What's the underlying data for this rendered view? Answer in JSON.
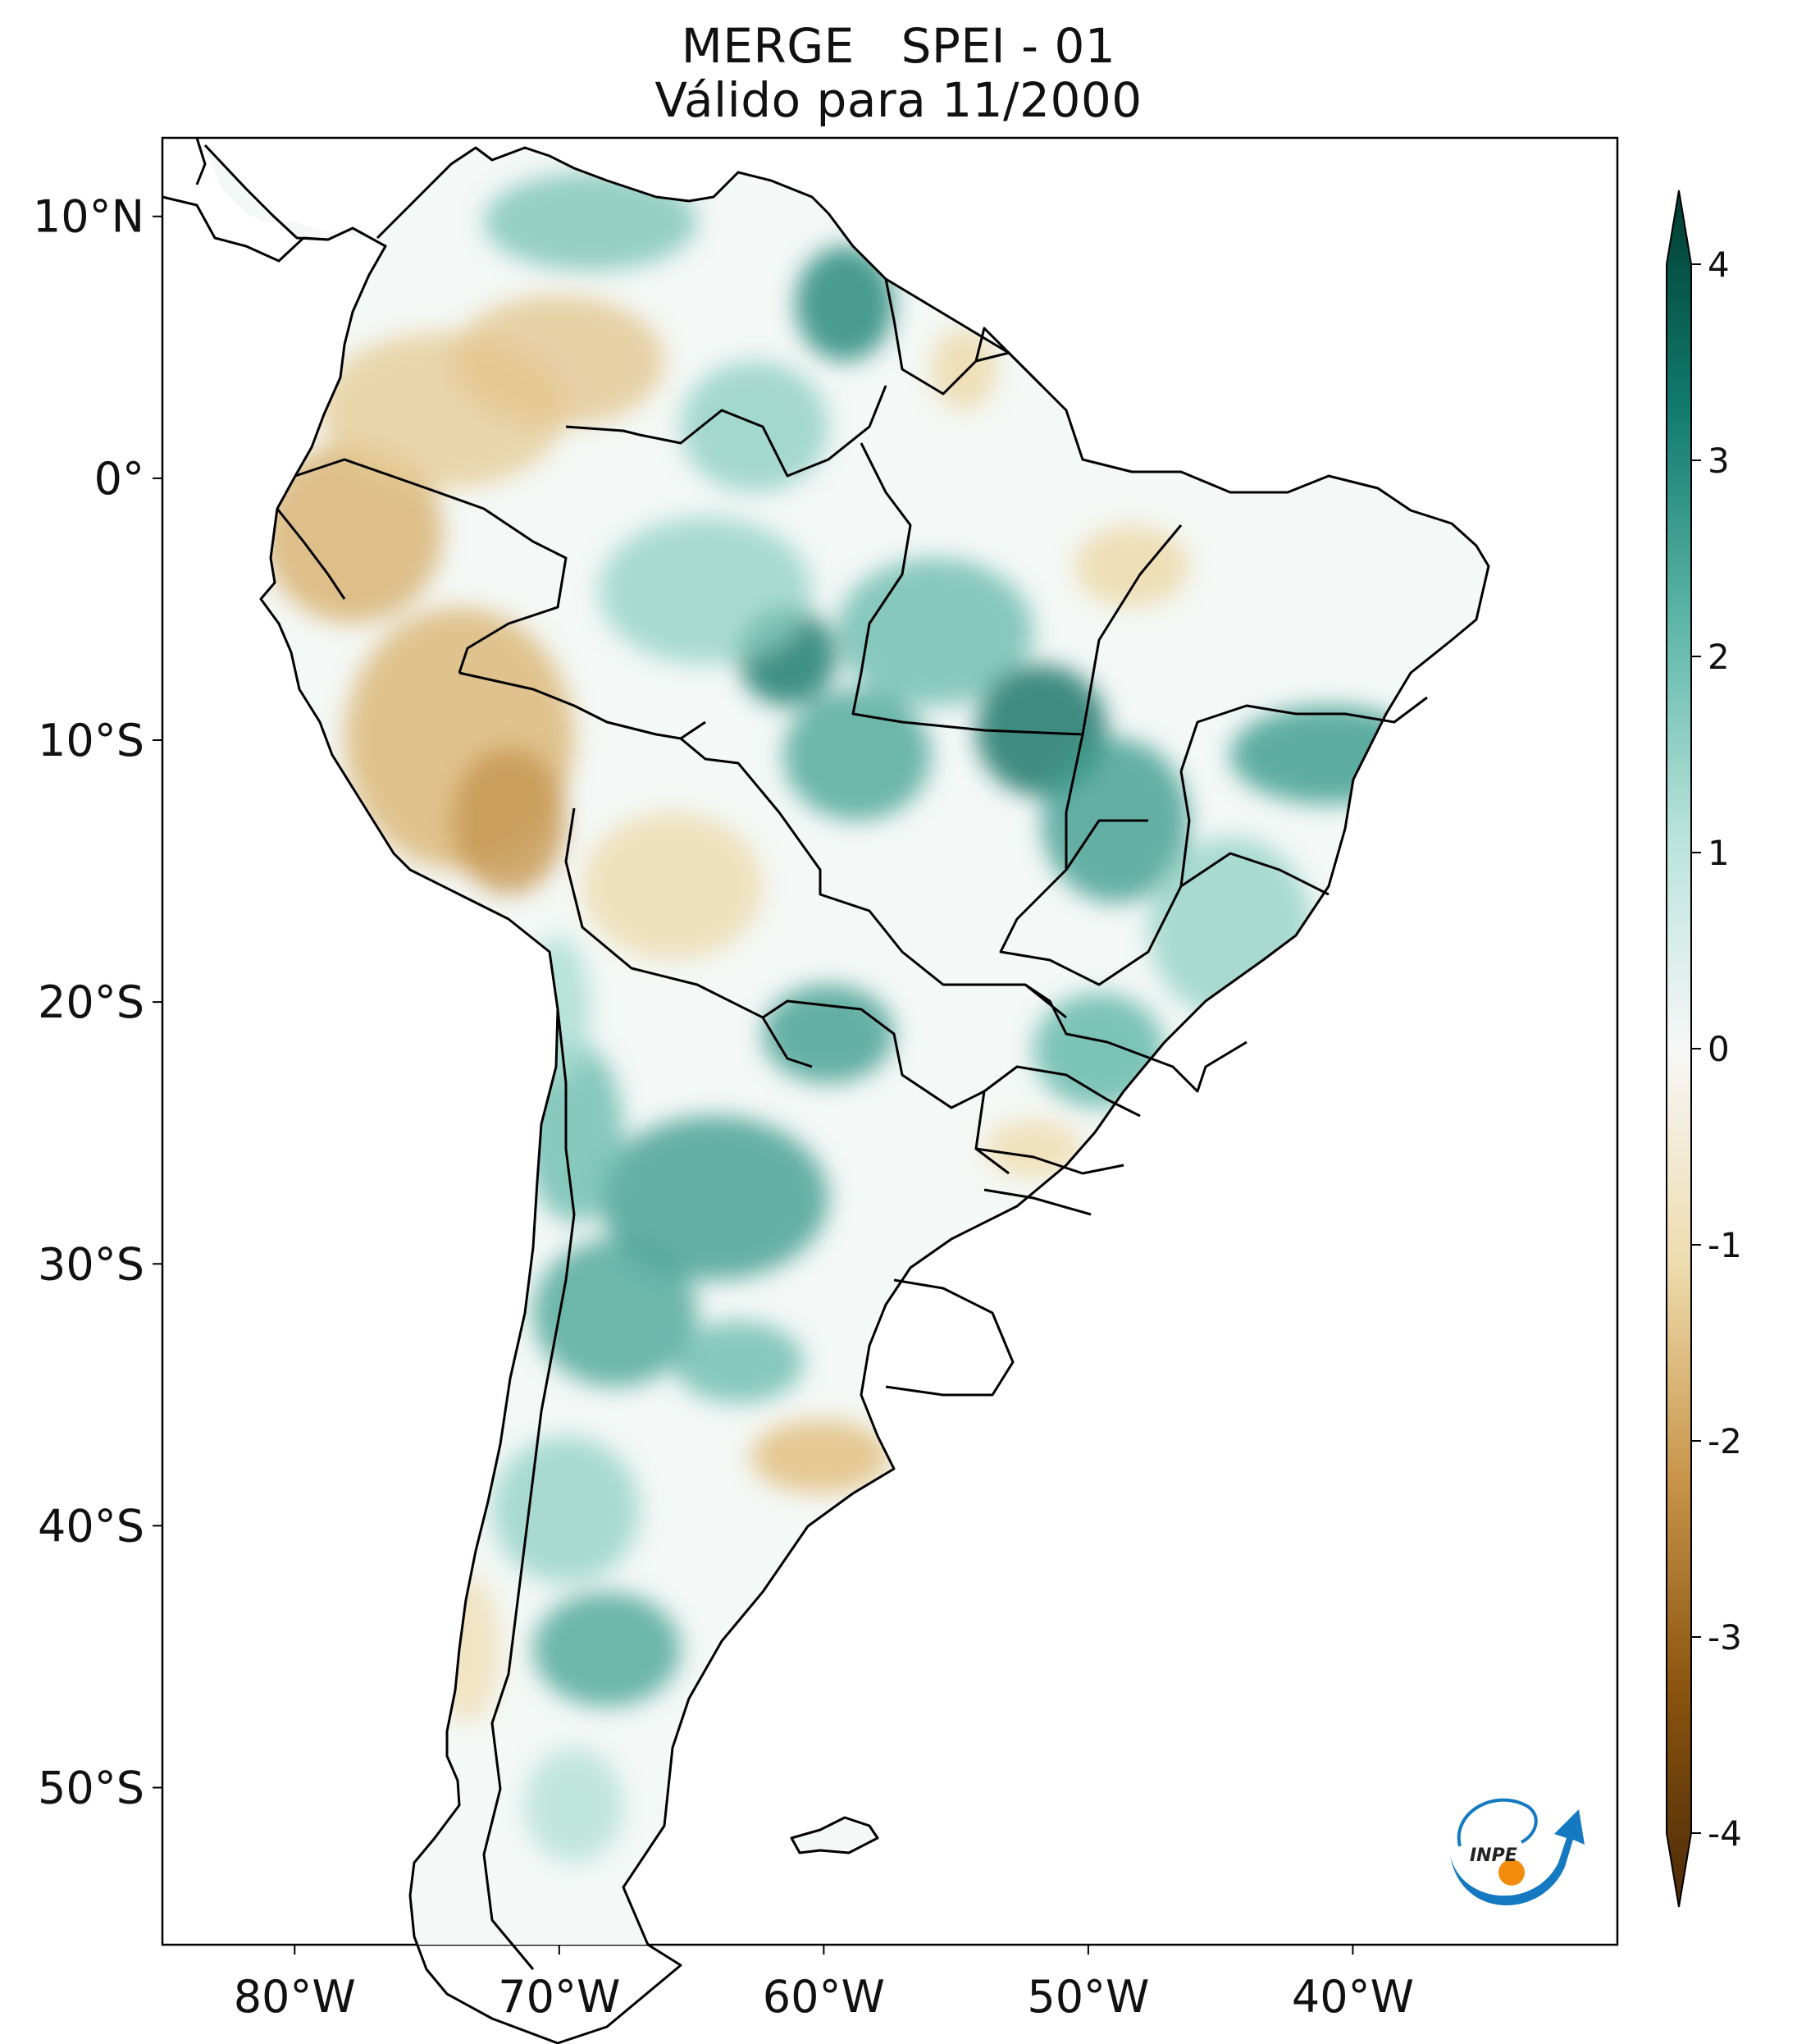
{
  "title": {
    "line1": "MERGE   SPEI - 01",
    "line2": "Válido para 11/2000"
  },
  "map": {
    "extent_lon": [
      -85,
      -30
    ],
    "extent_lat": [
      -56,
      13
    ],
    "lat_ticks": [
      {
        "value": 10,
        "label": "10°N"
      },
      {
        "value": 0,
        "label": "0°"
      },
      {
        "value": -10,
        "label": "10°S"
      },
      {
        "value": -20,
        "label": "20°S"
      },
      {
        "value": -30,
        "label": "30°S"
      },
      {
        "value": -40,
        "label": "40°S"
      },
      {
        "value": -50,
        "label": "50°S"
      }
    ],
    "lon_ticks": [
      {
        "value": -80,
        "label": "80°W"
      },
      {
        "value": -70,
        "label": "70°W"
      },
      {
        "value": -60,
        "label": "60°W"
      },
      {
        "value": -50,
        "label": "50°W"
      },
      {
        "value": -40,
        "label": "40°W"
      }
    ]
  },
  "colorbar": {
    "min": -4,
    "max": 4,
    "ticks": [
      {
        "value": 4,
        "label": "4"
      },
      {
        "value": 3,
        "label": "3"
      },
      {
        "value": 2,
        "label": "2"
      },
      {
        "value": 1,
        "label": "1"
      },
      {
        "value": 0,
        "label": "0"
      },
      {
        "value": -1,
        "label": "-1"
      },
      {
        "value": -2,
        "label": "-2"
      },
      {
        "value": -3,
        "label": "-3"
      },
      {
        "value": -4,
        "label": "-4"
      }
    ],
    "colors": {
      "neg4": "#4b2a08",
      "neg3": "#8a530f",
      "neg2": "#c8954a",
      "neg1": "#eedcae",
      "zero": "#f7f7f7",
      "pos1": "#b8e3da",
      "pos2": "#5db5a8",
      "pos3": "#117a6d",
      "pos4": "#013c30"
    }
  },
  "logo": {
    "text": "INPE",
    "arrow_color": "#1479c0",
    "dot_color": "#f28c0f"
  }
}
